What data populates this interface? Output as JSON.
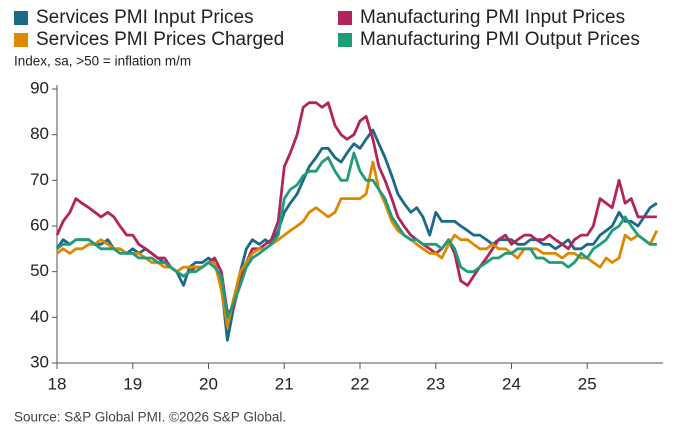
{
  "chart_data": {
    "type": "line",
    "axis_note": "Index, sa, >50 = inflation m/m",
    "source": "Source: S&P Global PMI. ©2026 S&P Global.",
    "x": [
      18,
      18.08,
      18.17,
      18.25,
      18.33,
      18.42,
      18.5,
      18.58,
      18.67,
      18.75,
      18.83,
      18.92,
      19,
      19.08,
      19.17,
      19.25,
      19.33,
      19.42,
      19.5,
      19.58,
      19.67,
      19.75,
      19.83,
      19.92,
      20,
      20.08,
      20.17,
      20.25,
      20.33,
      20.42,
      20.5,
      20.58,
      20.67,
      20.75,
      20.83,
      20.92,
      21,
      21.08,
      21.17,
      21.25,
      21.33,
      21.42,
      21.5,
      21.58,
      21.67,
      21.75,
      21.83,
      21.92,
      22,
      22.08,
      22.17,
      22.25,
      22.33,
      22.42,
      22.5,
      22.58,
      22.67,
      22.75,
      22.83,
      22.92,
      23,
      23.08,
      23.17,
      23.25,
      23.33,
      23.42,
      23.5,
      23.58,
      23.67,
      23.75,
      23.83,
      23.92,
      24,
      24.08,
      24.17,
      24.25,
      24.33,
      24.42,
      24.5,
      24.58,
      24.67,
      24.75,
      24.83,
      24.92,
      25,
      25.08,
      25.17,
      25.25,
      25.33,
      25.42,
      25.5,
      25.58,
      25.67,
      25.75,
      25.83,
      25.92
    ],
    "xlim": [
      18,
      26
    ],
    "xticks": [
      18,
      19,
      20,
      21,
      22,
      23,
      24,
      25
    ],
    "ylim": [
      30,
      90
    ],
    "yticks": [
      30,
      40,
      50,
      60,
      70,
      80,
      90
    ],
    "series": [
      {
        "name": "Services PMI Input Prices",
        "color": "#1b6a88",
        "values": [
          55,
          57,
          56,
          57,
          57,
          57,
          56,
          56,
          57,
          55,
          55,
          54,
          55,
          54,
          55,
          54,
          53,
          52,
          51,
          50,
          47,
          51,
          52,
          52,
          53,
          52,
          47,
          35,
          42,
          50,
          55,
          57,
          56,
          57,
          56,
          59,
          63,
          65,
          67,
          70,
          73,
          75,
          77,
          77,
          75,
          74,
          76,
          78,
          77,
          79,
          81,
          78,
          75,
          71,
          67,
          65,
          63,
          64,
          62,
          58,
          63,
          61,
          61,
          61,
          60,
          59,
          58,
          58,
          57,
          56,
          57,
          57,
          57,
          56,
          56,
          57,
          57,
          56,
          56,
          55,
          56,
          57,
          55,
          55,
          56,
          56,
          58,
          59,
          60,
          63,
          61,
          61,
          60,
          62,
          64,
          65
        ]
      },
      {
        "name": "Manufacturing PMI Input Prices",
        "color": "#b3245c",
        "values": [
          58,
          61,
          63,
          66,
          65,
          64,
          63,
          62,
          63,
          62,
          60,
          58,
          58,
          56,
          55,
          54,
          53,
          53,
          51,
          50,
          49,
          50,
          51,
          51,
          52,
          53,
          50,
          41,
          42,
          48,
          52,
          55,
          55,
          56,
          57,
          61,
          73,
          76,
          80,
          86,
          87,
          87,
          86,
          87,
          82,
          80,
          79,
          80,
          83,
          84,
          79,
          73,
          70,
          66,
          62,
          60,
          58,
          57,
          56,
          55,
          54,
          55,
          57,
          54,
          48,
          47,
          49,
          51,
          53,
          55,
          57,
          58,
          56,
          57,
          58,
          58,
          57,
          57,
          58,
          57,
          56,
          55,
          57,
          58,
          58,
          60,
          66,
          65,
          64,
          70,
          65,
          66,
          62,
          62,
          62,
          62
        ]
      },
      {
        "name": "Services PMI Prices Charged",
        "color": "#e08700",
        "values": [
          54,
          55,
          54,
          55,
          55,
          56,
          56,
          57,
          56,
          55,
          55,
          54,
          54,
          54,
          53,
          52,
          52,
          51,
          51,
          50,
          51,
          51,
          51,
          51,
          52,
          52,
          46,
          38,
          44,
          50,
          52,
          54,
          55,
          55,
          56,
          57,
          58,
          59,
          60,
          61,
          63,
          64,
          63,
          62,
          63,
          66,
          66,
          66,
          66,
          67,
          74,
          68,
          65,
          61,
          59,
          58,
          57,
          56,
          55,
          54,
          54,
          53,
          56,
          58,
          57,
          57,
          56,
          55,
          55,
          56,
          55,
          55,
          54,
          53,
          55,
          55,
          55,
          54,
          54,
          54,
          53,
          54,
          54,
          53,
          53,
          52,
          51,
          53,
          52,
          53,
          58,
          57,
          58,
          57,
          56,
          59
        ]
      },
      {
        "name": "Manufacturing PMI Output Prices",
        "color": "#1f9c7a",
        "values": [
          55,
          56,
          56,
          57,
          57,
          57,
          56,
          55,
          55,
          55,
          54,
          54,
          54,
          53,
          53,
          53,
          52,
          52,
          51,
          50,
          49,
          50,
          50,
          51,
          52,
          51,
          49,
          40,
          43,
          47,
          51,
          53,
          54,
          55,
          56,
          58,
          66,
          68,
          69,
          71,
          72,
          72,
          74,
          75,
          72,
          70,
          70,
          76,
          72,
          70,
          70,
          68,
          66,
          62,
          60,
          58,
          57,
          57,
          56,
          56,
          56,
          55,
          57,
          55,
          51,
          50,
          50,
          51,
          52,
          53,
          53,
          54,
          54,
          55,
          55,
          55,
          53,
          53,
          52,
          52,
          52,
          51,
          52,
          54,
          53,
          55,
          56,
          57,
          59,
          60,
          62,
          60,
          58,
          57,
          56,
          56
        ]
      }
    ]
  }
}
